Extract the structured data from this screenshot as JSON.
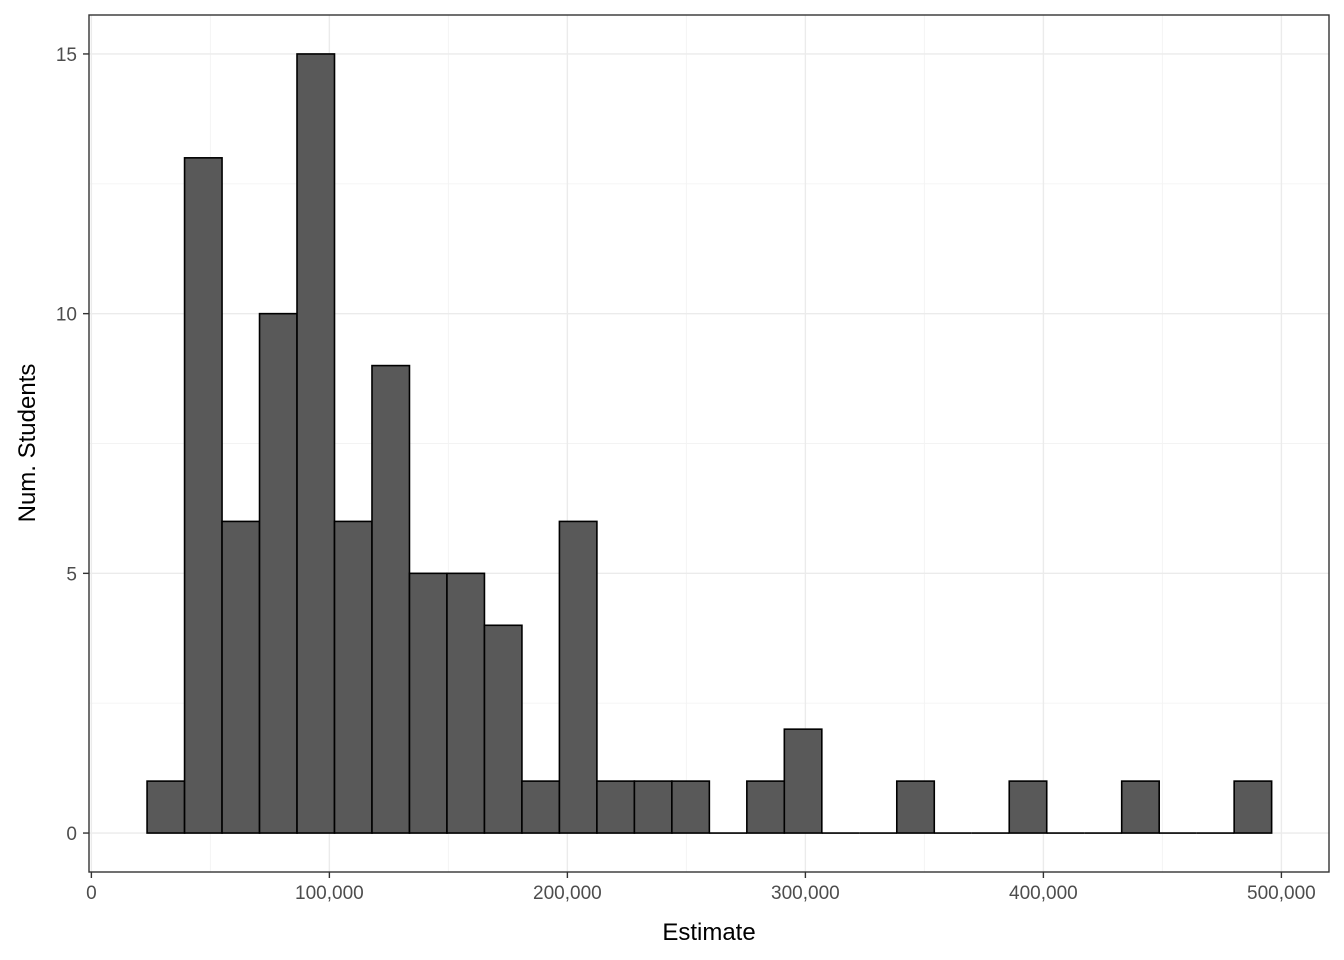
{
  "chart_data": {
    "type": "bar",
    "xlabel": "Estimate",
    "ylabel": "Num. Students",
    "xlim": [
      -1000,
      520000
    ],
    "ylim": [
      -0.75,
      15.75
    ],
    "x_ticks": [
      {
        "value": 0,
        "label": "0"
      },
      {
        "value": 100000,
        "label": "100,000"
      },
      {
        "value": 200000,
        "label": "200,000"
      },
      {
        "value": 300000,
        "label": "300,000"
      },
      {
        "value": 400000,
        "label": "400,000"
      },
      {
        "value": 500000,
        "label": "500,000"
      }
    ],
    "y_ticks": [
      {
        "value": 0,
        "label": "0"
      },
      {
        "value": 5,
        "label": "5"
      },
      {
        "value": 10,
        "label": "10"
      },
      {
        "value": 15,
        "label": "15"
      }
    ],
    "grid": true,
    "bin_width": 15750,
    "bin_start": 23400,
    "counts": [
      1,
      13,
      6,
      10,
      15,
      6,
      9,
      5,
      5,
      4,
      1,
      6,
      1,
      1,
      1,
      0,
      1,
      2,
      0,
      0,
      1,
      0,
      0,
      1,
      0,
      0,
      1,
      0,
      0,
      1
    ],
    "colors": {
      "fill": "#595959",
      "stroke": "#000000",
      "panel_border": "#333333"
    }
  }
}
